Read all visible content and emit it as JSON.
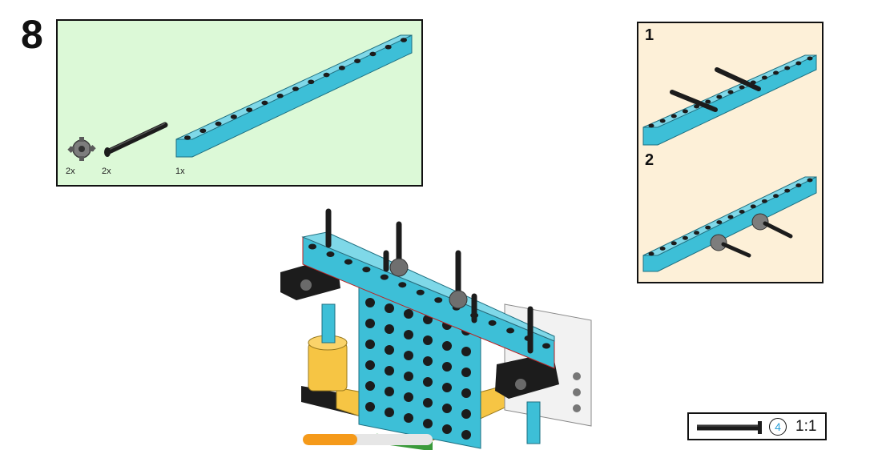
{
  "step": {
    "number": "8"
  },
  "parts": [
    {
      "name": "gear",
      "qty": "2x"
    },
    {
      "name": "axle",
      "qty": "2x"
    },
    {
      "name": "beam",
      "qty": "1x"
    }
  ],
  "substeps": [
    {
      "number": "1"
    },
    {
      "number": "2"
    }
  ],
  "scale": {
    "count": "4",
    "ratio": "1:1"
  },
  "progress": {
    "fraction": 0.42
  },
  "colors": {
    "beam": "#3dbfd7",
    "parts_bg": "#dcf9d7",
    "substep_bg": "#fdf0d8",
    "progress": "#f59a1a",
    "yellow": "#f6c544",
    "black": "#1c1c1c"
  }
}
